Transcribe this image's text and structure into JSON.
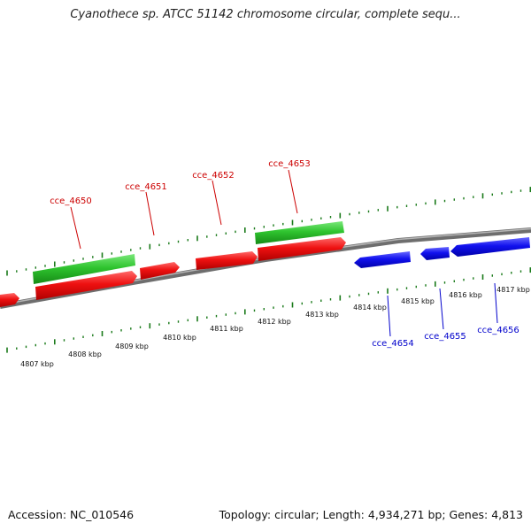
{
  "title": "Cyanothece sp. ATCC 51142 chromosome circular, complete sequ...",
  "footer": {
    "accession": "Accession: NC_010546",
    "stats": "Topology: circular; Length: 4,934,271 bp; Genes: 4,813"
  },
  "colors": {
    "forward_gene": "#e01010",
    "reverse_gene": "#1010dd",
    "rna_gene": "#30c030",
    "backbone": "#888888",
    "tick": "#1a7a1a",
    "forward_label": "#cc0000",
    "reverse_label": "#0000cc"
  },
  "scale_labels": [
    "4807 kbp",
    "4808 kbp",
    "4809 kbp",
    "4810 kbp",
    "4811 kbp",
    "4812 kbp",
    "4813 kbp",
    "4814 kbp",
    "4815 kbp",
    "4816 kbp",
    "4817 kbp"
  ],
  "gene_labels": {
    "forward": [
      "cce_4650",
      "cce_4651",
      "cce_4652",
      "cce_4653"
    ],
    "reverse": [
      "cce_4654",
      "cce_4655",
      "cce_4656"
    ]
  }
}
